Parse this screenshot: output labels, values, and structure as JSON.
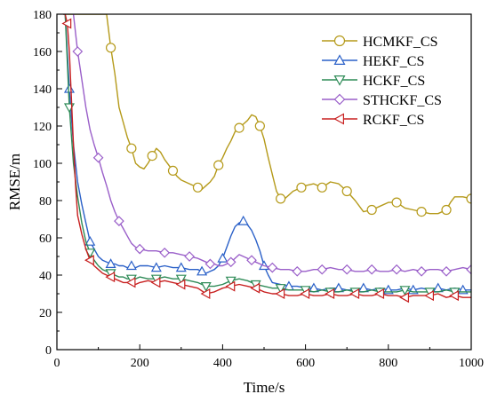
{
  "chart_data": {
    "type": "line",
    "title": "",
    "xlabel": "Time/s",
    "ylabel": "RMSE/m",
    "xlim": [
      0,
      1000
    ],
    "ylim": [
      0,
      180
    ],
    "xticks": [
      "0",
      "200",
      "400",
      "600",
      "800",
      "1000"
    ],
    "yticks": [
      "0",
      "20",
      "40",
      "60",
      "80",
      "100",
      "120",
      "140",
      "160",
      "180"
    ],
    "grid": false,
    "legend_position": "top-right",
    "series": [
      {
        "name": "HCMKF_CS",
        "color": "#b59a1a",
        "marker": "circle",
        "x": [
          20,
          40,
          60,
          80,
          100,
          110,
          120,
          130,
          140,
          150,
          160,
          170,
          180,
          190,
          200,
          210,
          220,
          230,
          240,
          250,
          260,
          270,
          280,
          290,
          300,
          320,
          340,
          350,
          360,
          370,
          380,
          390,
          400,
          410,
          420,
          430,
          440,
          450,
          460,
          470,
          480,
          490,
          500,
          510,
          520,
          530,
          540,
          550,
          560,
          570,
          580,
          590,
          600,
          620,
          640,
          660,
          680,
          700,
          720,
          740,
          760,
          780,
          800,
          820,
          840,
          860,
          880,
          900,
          920,
          940,
          950,
          960,
          980,
          1000
        ],
        "y": [
          180,
          180,
          180,
          180,
          180,
          180,
          180,
          162,
          148,
          130,
          122,
          114,
          108,
          100,
          98,
          97,
          100,
          104,
          108,
          106,
          102,
          99,
          96,
          93,
          91,
          89,
          87,
          86,
          88,
          90,
          93,
          99,
          103,
          108,
          112,
          117,
          119,
          121,
          123,
          126,
          125,
          120,
          113,
          103,
          94,
          85,
          81,
          81,
          83,
          85,
          86,
          87,
          88,
          89,
          87,
          90,
          89,
          85,
          80,
          74,
          75,
          77,
          79,
          79,
          76,
          75,
          74,
          73,
          73,
          75,
          79,
          82,
          82,
          81
        ]
      },
      {
        "name": "HEKF_CS",
        "color": "#2a60c8",
        "marker": "triangle-up",
        "x": [
          20,
          30,
          40,
          50,
          60,
          70,
          80,
          90,
          100,
          110,
          120,
          130,
          140,
          150,
          160,
          170,
          180,
          190,
          200,
          220,
          240,
          260,
          280,
          300,
          320,
          340,
          350,
          360,
          370,
          380,
          390,
          400,
          410,
          420,
          430,
          440,
          450,
          460,
          470,
          480,
          490,
          500,
          510,
          520,
          540,
          560,
          580,
          600,
          620,
          640,
          660,
          680,
          700,
          720,
          740,
          760,
          780,
          800,
          820,
          840,
          860,
          880,
          900,
          920,
          940,
          960,
          980,
          1000
        ],
        "y": [
          180,
          140,
          110,
          90,
          78,
          68,
          58,
          54,
          50,
          48,
          47,
          46,
          46,
          45,
          45,
          44,
          45,
          44,
          45,
          45,
          44,
          45,
          44,
          44,
          43,
          43,
          42,
          41,
          42,
          43,
          45,
          49,
          55,
          61,
          66,
          68,
          69,
          67,
          64,
          59,
          53,
          45,
          40,
          36,
          35,
          34,
          34,
          33,
          33,
          32,
          33,
          33,
          32,
          32,
          33,
          32,
          33,
          32,
          32,
          33,
          32,
          33,
          32,
          33,
          32,
          33,
          32,
          32
        ]
      },
      {
        "name": "HCKF_CS",
        "color": "#2e8b57",
        "marker": "triangle-down",
        "x": [
          20,
          30,
          40,
          50,
          60,
          70,
          80,
          90,
          100,
          110,
          120,
          130,
          140,
          150,
          160,
          170,
          180,
          190,
          200,
          220,
          240,
          260,
          280,
          300,
          320,
          340,
          360,
          380,
          400,
          420,
          440,
          460,
          480,
          500,
          520,
          540,
          560,
          580,
          600,
          620,
          640,
          660,
          680,
          700,
          720,
          740,
          760,
          780,
          800,
          820,
          840,
          860,
          880,
          900,
          920,
          940,
          960,
          980,
          1000
        ],
        "y": [
          180,
          130,
          100,
          82,
          68,
          58,
          52,
          48,
          45,
          43,
          42,
          41,
          40,
          39,
          39,
          38,
          38,
          38,
          39,
          38,
          38,
          39,
          38,
          38,
          37,
          36,
          34,
          34,
          35,
          37,
          38,
          37,
          35,
          34,
          33,
          33,
          32,
          32,
          32,
          31,
          32,
          31,
          31,
          32,
          31,
          31,
          32,
          31,
          31,
          31,
          32,
          31,
          31,
          31,
          31,
          32,
          31,
          31,
          31
        ]
      },
      {
        "name": "STHCKF_CS",
        "color": "#9a5fc9",
        "marker": "diamond",
        "x": [
          40,
          50,
          60,
          70,
          80,
          90,
          100,
          110,
          120,
          130,
          140,
          150,
          160,
          170,
          180,
          190,
          200,
          220,
          240,
          260,
          280,
          300,
          320,
          340,
          350,
          360,
          370,
          380,
          390,
          400,
          410,
          420,
          430,
          440,
          450,
          460,
          470,
          480,
          490,
          500,
          520,
          540,
          560,
          580,
          600,
          620,
          640,
          660,
          680,
          700,
          720,
          740,
          760,
          780,
          800,
          820,
          840,
          860,
          880,
          900,
          920,
          940,
          960,
          980,
          1000
        ],
        "y": [
          180,
          160,
          145,
          130,
          118,
          110,
          103,
          95,
          88,
          80,
          74,
          69,
          65,
          61,
          57,
          55,
          54,
          53,
          53,
          52,
          52,
          51,
          50,
          49,
          48,
          47,
          46,
          46,
          45,
          45,
          46,
          47,
          49,
          51,
          50,
          49,
          48,
          47,
          46,
          45,
          44,
          43,
          43,
          42,
          42,
          43,
          43,
          44,
          43,
          43,
          42,
          42,
          43,
          42,
          42,
          43,
          42,
          43,
          42,
          43,
          43,
          42,
          43,
          44,
          43
        ]
      },
      {
        "name": "RCKF_CS",
        "color": "#c82020",
        "marker": "triangle-left",
        "x": [
          15,
          20,
          25,
          30,
          35,
          40,
          45,
          50,
          60,
          70,
          80,
          90,
          100,
          110,
          120,
          130,
          140,
          150,
          160,
          170,
          180,
          190,
          200,
          220,
          240,
          260,
          280,
          300,
          320,
          340,
          360,
          380,
          400,
          420,
          440,
          460,
          480,
          500,
          520,
          540,
          560,
          580,
          600,
          620,
          640,
          660,
          680,
          700,
          720,
          740,
          760,
          780,
          800,
          820,
          840,
          860,
          880,
          900,
          920,
          940,
          960,
          980,
          1000
        ],
        "y": [
          180,
          180,
          175,
          160,
          135,
          110,
          88,
          72,
          62,
          54,
          48,
          45,
          43,
          41,
          40,
          39,
          38,
          37,
          36,
          36,
          36,
          35,
          36,
          37,
          36,
          37,
          36,
          35,
          34,
          33,
          30,
          31,
          33,
          34,
          35,
          34,
          33,
          31,
          30,
          30,
          29,
          29,
          30,
          29,
          29,
          30,
          29,
          29,
          30,
          29,
          29,
          30,
          29,
          29,
          28,
          29,
          29,
          29,
          30,
          28,
          29,
          28,
          28
        ]
      }
    ]
  }
}
